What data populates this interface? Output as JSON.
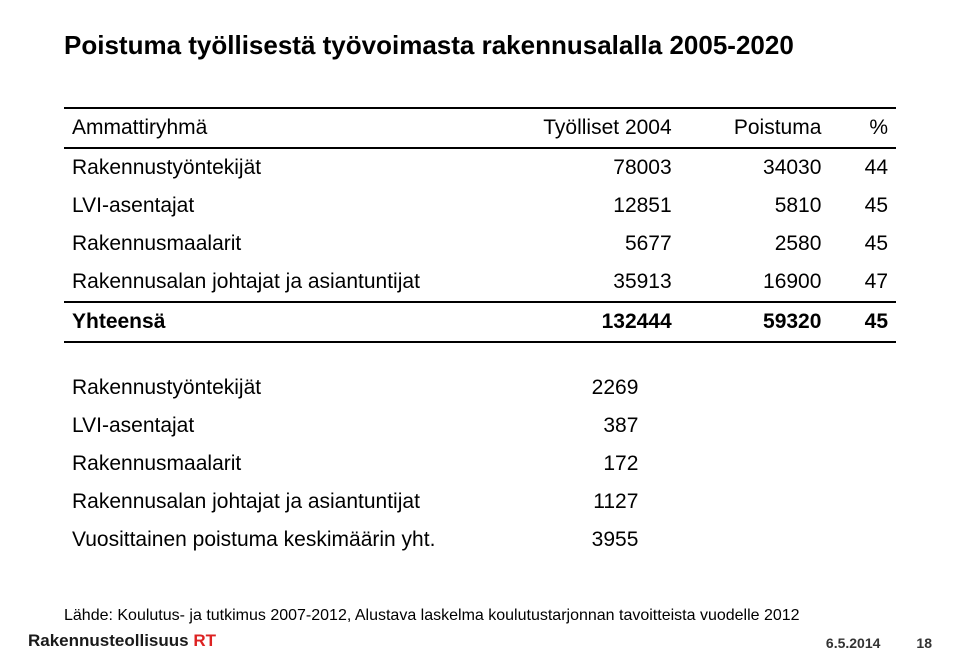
{
  "title": "Poistuma työllisestä työvoimasta rakennusalalla 2005-2020",
  "table1": {
    "headers": [
      "Ammattiryhmä",
      "Työlliset 2004",
      "Poistuma",
      "%"
    ],
    "rows": [
      {
        "label": "Rakennustyöntekijät",
        "a": "78003",
        "b": "34030",
        "c": "44"
      },
      {
        "label": "LVI-asentajat",
        "a": "12851",
        "b": "5810",
        "c": "45"
      },
      {
        "label": "Rakennusmaalarit",
        "a": "5677",
        "b": "2580",
        "c": "45"
      },
      {
        "label": "Rakennusalan johtajat ja asiantuntijat",
        "a": "35913",
        "b": "16900",
        "c": "47"
      }
    ],
    "total": {
      "label": "Yhteensä",
      "a": "132444",
      "b": "59320",
      "c": "45"
    }
  },
  "table2": {
    "rows": [
      {
        "label": "Rakennustyöntekijät",
        "v": "2269"
      },
      {
        "label": "LVI-asentajat",
        "v": "387"
      },
      {
        "label": "Rakennusmaalarit",
        "v": "172"
      },
      {
        "label": "Rakennusalan johtajat ja asiantuntijat",
        "v": "1127"
      },
      {
        "label": "Vuosittainen poistuma keskimäärin yht.",
        "v": "3955"
      }
    ]
  },
  "source": "Lähde: Koulutus- ja tutkimus 2007-2012, Alustava laskelma koulutustarjonnan tavoitteista vuodelle 2012",
  "footer": {
    "brand_main": "Rakennusteollisuus",
    "brand_suffix": "RT",
    "date": "6.5.2014",
    "page": "18"
  }
}
